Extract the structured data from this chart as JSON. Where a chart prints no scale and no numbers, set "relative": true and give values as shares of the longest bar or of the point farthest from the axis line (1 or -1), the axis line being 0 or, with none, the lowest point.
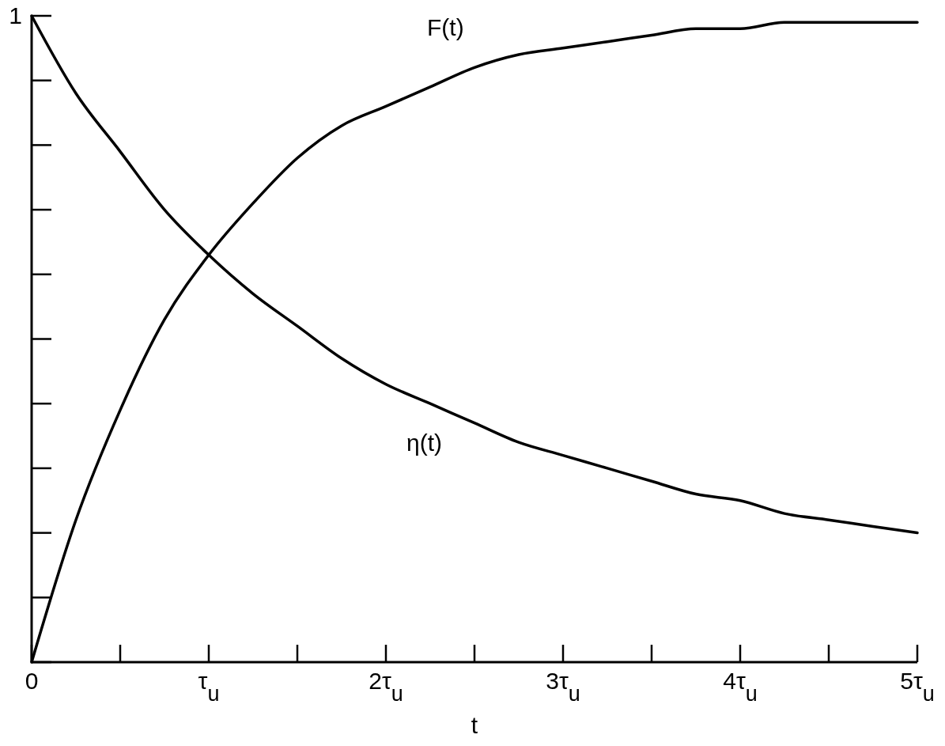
{
  "chart_data": {
    "type": "line",
    "xlabel": "t",
    "relative": true,
    "annotations": [
      "1"
    ],
    "x": [
      0,
      0.25,
      0.5,
      0.75,
      1,
      1.25,
      1.5,
      1.75,
      2,
      2.25,
      2.5,
      2.75,
      3,
      3.25,
      3.5,
      3.75,
      4,
      4.25,
      4.5,
      4.75,
      5
    ],
    "series": [
      {
        "name": "F(t)",
        "color": "#000000",
        "values": [
          0,
          0.22,
          0.39,
          0.53,
          0.63,
          0.71,
          0.78,
          0.83,
          0.86,
          0.89,
          0.92,
          0.94,
          0.95,
          0.96,
          0.97,
          0.98,
          0.98,
          0.99,
          0.99,
          0.99,
          0.99
        ]
      },
      {
        "name": "η(t)",
        "color": "#000000",
        "values": [
          1,
          0.88,
          0.79,
          0.7,
          0.63,
          0.57,
          0.52,
          0.47,
          0.43,
          0.4,
          0.37,
          0.34,
          0.32,
          0.3,
          0.28,
          0.26,
          0.25,
          0.23,
          0.22,
          0.21,
          0.2
        ]
      }
    ],
    "xlim": [
      0,
      5
    ],
    "xticks": [
      0,
      {
        "value": 1,
        "label": "τ$_{u}$"
      },
      {
        "value": 2,
        "label": "2τ$_{u}$"
      },
      {
        "value": 3,
        "label": "3τ$_{u}$"
      },
      {
        "value": 4,
        "label": "4τ$_{u}$"
      },
      {
        "value": 5,
        "label": "5τ$_{u}$"
      }
    ],
    "grid": false,
    "legend": false,
    "marker": "none",
    "line_style": "solid"
  }
}
